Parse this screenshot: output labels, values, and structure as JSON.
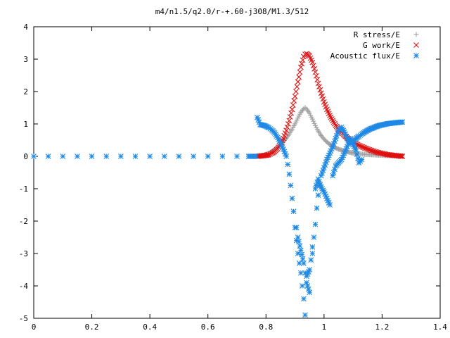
{
  "chart_data": {
    "type": "scatter",
    "title": "m4/n1.5/q2.0/r-+.60-j308/M1.3/512",
    "xlabel": "",
    "ylabel": "",
    "xlim": [
      0,
      1.4
    ],
    "ylim": [
      -5,
      4
    ],
    "x_ticks": [
      "0",
      "0.2",
      "0.4",
      "0.6",
      "0.8",
      "1",
      "1.2",
      "1.4"
    ],
    "y_ticks": [
      "4",
      "3",
      "2",
      "1",
      "0",
      "-1",
      "-2",
      "-3",
      "-4",
      "-5"
    ],
    "grid": false,
    "legend_position": "top-right",
    "series": [
      {
        "name": "R stress/E",
        "marker": "plus",
        "color": "#a0a0a0",
        "points": [
          [
            0.77,
            0.01
          ],
          [
            0.78,
            0.02
          ],
          [
            0.79,
            0.03
          ],
          [
            0.8,
            0.06
          ],
          [
            0.81,
            0.1
          ],
          [
            0.82,
            0.15
          ],
          [
            0.83,
            0.21
          ],
          [
            0.84,
            0.28
          ],
          [
            0.85,
            0.36
          ],
          [
            0.86,
            0.45
          ],
          [
            0.87,
            0.56
          ],
          [
            0.88,
            0.69
          ],
          [
            0.89,
            0.84
          ],
          [
            0.9,
            1.0
          ],
          [
            0.91,
            1.18
          ],
          [
            0.92,
            1.36
          ],
          [
            0.93,
            1.47
          ],
          [
            0.935,
            1.5
          ],
          [
            0.94,
            1.46
          ],
          [
            0.95,
            1.33
          ],
          [
            0.96,
            1.15
          ],
          [
            0.97,
            0.95
          ],
          [
            0.98,
            0.78
          ],
          [
            0.99,
            0.64
          ],
          [
            1.0,
            0.53
          ],
          [
            1.01,
            0.44
          ],
          [
            1.02,
            0.37
          ],
          [
            1.03,
            0.31
          ],
          [
            1.04,
            0.26
          ],
          [
            1.05,
            0.22
          ],
          [
            1.06,
            0.19
          ],
          [
            1.07,
            0.16
          ],
          [
            1.08,
            0.14
          ],
          [
            1.09,
            0.12
          ],
          [
            1.1,
            0.1
          ],
          [
            1.12,
            0.08
          ],
          [
            1.14,
            0.06
          ],
          [
            1.16,
            0.05
          ],
          [
            1.18,
            0.04
          ],
          [
            1.2,
            0.03
          ],
          [
            1.22,
            0.02
          ],
          [
            1.24,
            0.02
          ],
          [
            1.26,
            0.01
          ],
          [
            1.27,
            0.01
          ]
        ]
      },
      {
        "name": "G work/E",
        "marker": "cross",
        "color": "#e01010",
        "points": [
          [
            0.77,
            0.0
          ],
          [
            0.78,
            0.01
          ],
          [
            0.79,
            0.02
          ],
          [
            0.8,
            0.03
          ],
          [
            0.81,
            0.05
          ],
          [
            0.82,
            0.09
          ],
          [
            0.83,
            0.15
          ],
          [
            0.84,
            0.24
          ],
          [
            0.85,
            0.37
          ],
          [
            0.86,
            0.55
          ],
          [
            0.87,
            0.8
          ],
          [
            0.88,
            1.1
          ],
          [
            0.89,
            1.45
          ],
          [
            0.9,
            1.85
          ],
          [
            0.91,
            2.3
          ],
          [
            0.92,
            2.75
          ],
          [
            0.93,
            3.08
          ],
          [
            0.935,
            3.15
          ],
          [
            0.94,
            3.17
          ],
          [
            0.95,
            3.1
          ],
          [
            0.96,
            2.9
          ],
          [
            0.97,
            2.6
          ],
          [
            0.98,
            2.25
          ],
          [
            0.99,
            1.95
          ],
          [
            1.0,
            1.68
          ],
          [
            1.01,
            1.45
          ],
          [
            1.02,
            1.26
          ],
          [
            1.03,
            1.1
          ],
          [
            1.04,
            0.96
          ],
          [
            1.05,
            0.84
          ],
          [
            1.06,
            0.74
          ],
          [
            1.07,
            0.65
          ],
          [
            1.08,
            0.57
          ],
          [
            1.09,
            0.5
          ],
          [
            1.1,
            0.44
          ],
          [
            1.12,
            0.34
          ],
          [
            1.14,
            0.26
          ],
          [
            1.16,
            0.19
          ],
          [
            1.18,
            0.13
          ],
          [
            1.2,
            0.09
          ],
          [
            1.22,
            0.05
          ],
          [
            1.24,
            0.03
          ],
          [
            1.26,
            0.01
          ],
          [
            1.27,
            0.0
          ]
        ]
      },
      {
        "name": "Acoustic flux/E",
        "marker": "star",
        "color": "#1e88e5",
        "points": [
          [
            0.0,
            0.0
          ],
          [
            0.05,
            0.0
          ],
          [
            0.1,
            0.0
          ],
          [
            0.15,
            0.0
          ],
          [
            0.2,
            0.0
          ],
          [
            0.25,
            0.0
          ],
          [
            0.3,
            0.0
          ],
          [
            0.35,
            0.0
          ],
          [
            0.4,
            0.0
          ],
          [
            0.45,
            0.0
          ],
          [
            0.5,
            0.0
          ],
          [
            0.55,
            0.0
          ],
          [
            0.6,
            0.0
          ],
          [
            0.65,
            0.0
          ],
          [
            0.7,
            0.0
          ],
          [
            0.74,
            0.0
          ],
          [
            0.765,
            0.0
          ],
          [
            0.77,
            1.2
          ],
          [
            0.78,
            0.98
          ],
          [
            0.79,
            0.96
          ],
          [
            0.8,
            0.93
          ],
          [
            0.81,
            0.88
          ],
          [
            0.82,
            0.82
          ],
          [
            0.83,
            0.72
          ],
          [
            0.84,
            0.58
          ],
          [
            0.85,
            0.42
          ],
          [
            0.86,
            0.22
          ],
          [
            0.87,
            0.0
          ],
          [
            0.875,
            -0.25
          ],
          [
            0.88,
            -0.55
          ],
          [
            0.885,
            -0.9
          ],
          [
            0.89,
            -1.3
          ],
          [
            0.895,
            -1.7
          ],
          [
            0.9,
            -2.2
          ],
          [
            0.905,
            -2.6
          ],
          [
            0.91,
            -3.0
          ],
          [
            0.915,
            -3.3
          ],
          [
            0.92,
            -3.6
          ],
          [
            0.925,
            -4.0
          ],
          [
            0.93,
            -4.4
          ],
          [
            0.935,
            -4.9
          ],
          [
            0.94,
            -3.7
          ],
          [
            0.95,
            -3.5
          ],
          [
            0.955,
            -3.2
          ],
          [
            0.96,
            -2.8
          ],
          [
            0.965,
            -2.5
          ],
          [
            0.97,
            -2.1
          ],
          [
            0.975,
            -1.6
          ],
          [
            0.98,
            -1.2
          ],
          [
            0.985,
            -0.9
          ],
          [
            0.99,
            -0.6
          ],
          [
            1.0,
            -0.35
          ],
          [
            1.01,
            -0.1
          ],
          [
            1.02,
            0.1
          ],
          [
            1.03,
            0.3
          ],
          [
            1.04,
            0.55
          ],
          [
            1.05,
            0.8
          ],
          [
            1.06,
            0.9
          ],
          [
            1.07,
            0.75
          ],
          [
            1.08,
            0.55
          ],
          [
            1.09,
            0.4
          ],
          [
            1.1,
            0.45
          ],
          [
            1.11,
            0.55
          ],
          [
            1.12,
            0.62
          ],
          [
            1.13,
            0.68
          ],
          [
            1.14,
            0.75
          ],
          [
            1.15,
            0.8
          ],
          [
            1.16,
            0.85
          ],
          [
            1.17,
            0.88
          ],
          [
            1.18,
            0.92
          ],
          [
            1.19,
            0.95
          ],
          [
            1.2,
            0.97
          ],
          [
            1.21,
            0.99
          ],
          [
            1.22,
            1.01
          ],
          [
            1.23,
            1.02
          ],
          [
            1.24,
            1.03
          ],
          [
            1.25,
            1.04
          ],
          [
            1.26,
            1.05
          ],
          [
            1.27,
            1.06
          ],
          [
            0.905,
            -2.2
          ],
          [
            0.91,
            -2.5
          ],
          [
            0.92,
            -2.9
          ],
          [
            0.93,
            -3.3
          ],
          [
            0.94,
            -3.9
          ],
          [
            0.95,
            -4.2
          ],
          [
            0.96,
            -3.0
          ],
          [
            0.97,
            -1.0
          ],
          [
            0.98,
            -0.7
          ],
          [
            0.99,
            -0.95
          ],
          [
            1.0,
            -1.1
          ],
          [
            1.01,
            -1.3
          ],
          [
            1.02,
            -1.5
          ],
          [
            1.03,
            -0.6
          ],
          [
            1.04,
            -0.3
          ],
          [
            1.05,
            -0.2
          ],
          [
            1.06,
            -0.1
          ],
          [
            1.07,
            0.1
          ],
          [
            1.08,
            0.3
          ],
          [
            1.09,
            0.55
          ],
          [
            1.1,
            0.35
          ],
          [
            1.11,
            0.2
          ],
          [
            1.12,
            -0.2
          ],
          [
            1.13,
            -0.1
          ]
        ]
      }
    ]
  }
}
